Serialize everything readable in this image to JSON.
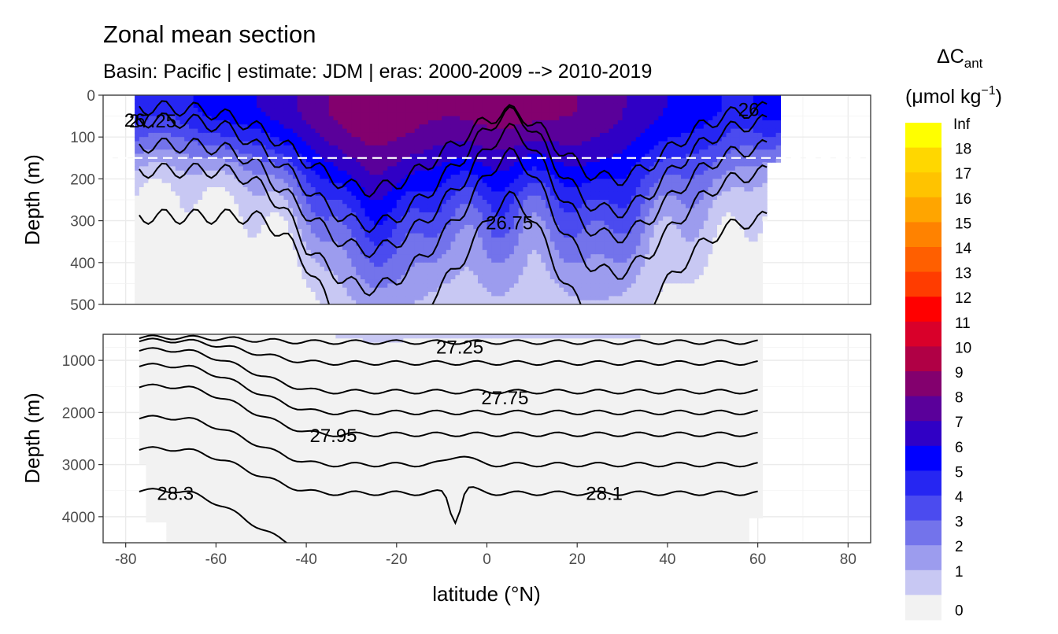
{
  "chart_data": {
    "type": "contour",
    "title": "Zonal mean section",
    "subtitle": "Basin: Pacific | estimate: JDM  | eras: 2000-2009 --> 2010-2019",
    "xlabel": "latitude (°N)",
    "ylabel": "Depth (m)",
    "xlim": [
      -85,
      85
    ],
    "x_ticks": [
      -80,
      -60,
      -40,
      -20,
      0,
      20,
      40,
      60,
      80
    ],
    "panels": [
      {
        "name": "upper",
        "ylim": [
          0,
          500
        ],
        "y_ticks": [
          0,
          100,
          200,
          300,
          400,
          500
        ],
        "reference_depth_line": 150,
        "contour_labels": [
          {
            "text": "26",
            "lat": -78,
            "depth": 60
          },
          {
            "text": "27.25",
            "lat": -74,
            "depth": 62
          },
          {
            "text": "26",
            "lat": 58,
            "depth": 35
          },
          {
            "text": "26.75",
            "lat": 5,
            "depth": 305
          }
        ]
      },
      {
        "name": "lower",
        "ylim": [
          500,
          4500
        ],
        "y_ticks": [
          1000,
          2000,
          3000,
          4000
        ],
        "contour_labels": [
          {
            "text": "27.25",
            "lat": -6,
            "depth": 750
          },
          {
            "text": "27.75",
            "lat": 4,
            "depth": 1720
          },
          {
            "text": "27.95",
            "lat": -34,
            "depth": 2450
          },
          {
            "text": "28.3",
            "lat": -69,
            "depth": 3560
          },
          {
            "text": "28.1",
            "lat": 26,
            "depth": 3560
          }
        ]
      }
    ],
    "legend": {
      "title": "ΔC",
      "title_subscript": "ant",
      "unit_prefix": "(μmol kg",
      "unit_power": "−1",
      "unit_suffix": ")",
      "position": "right",
      "labels": [
        "Inf",
        "18",
        "17",
        "16",
        "15",
        "14",
        "13",
        "12",
        "11",
        "10",
        "9",
        "8",
        "7",
        "6",
        "5",
        "4",
        "3",
        "2",
        "1",
        "0"
      ],
      "colors": [
        "#FFFF00",
        "#FFD700",
        "#FFC300",
        "#FFA500",
        "#FF8200",
        "#FF5F00",
        "#FF3C00",
        "#FF0000",
        "#D9002A",
        "#B00045",
        "#83006E",
        "#5A009A",
        "#3000C5",
        "#0000FF",
        "#2626F2",
        "#4B4BEF",
        "#7373EB",
        "#9C9CEE",
        "#C8C8F3",
        "#F2F2F2"
      ]
    },
    "bins": [
      0,
      1,
      2,
      3,
      4,
      5,
      6,
      7,
      8,
      9,
      10
    ],
    "fill_colors": [
      "#F2F2F2",
      "#C8C8F3",
      "#9C9CEE",
      "#7373EB",
      "#4B4BEF",
      "#2626F2",
      "#0000FF",
      "#3000C5",
      "#5A009A",
      "#83006E",
      "#B00045"
    ]
  }
}
